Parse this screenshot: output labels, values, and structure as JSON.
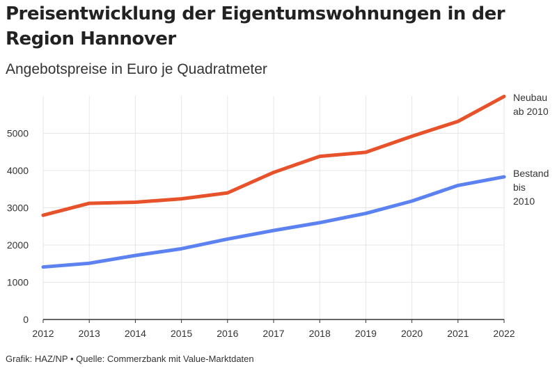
{
  "title": "Preisentwicklung der Eigentumswohnungen in der Region Hannover",
  "subtitle": "Angebotspreise in Euro je Quadratmeter",
  "footer": "Grafik: HAZ/NP • Quelle: Commerzbank mit Value-Marktdaten",
  "chart_data": {
    "type": "line",
    "title": "Preisentwicklung der Eigentumswohnungen in der Region Hannover",
    "subtitle": "Angebotspreise in Euro je Quadratmeter",
    "xlabel": "",
    "ylabel": "",
    "x": [
      2012,
      2013,
      2014,
      2015,
      2016,
      2017,
      2018,
      2019,
      2020,
      2021,
      2022
    ],
    "x_tick_labels": [
      "2012",
      "2013",
      "2014",
      "2015",
      "2016",
      "2017",
      "2018",
      "2019",
      "2020",
      "2021",
      "2022"
    ],
    "y_ticks": [
      0,
      1000,
      2000,
      3000,
      4000,
      5000
    ],
    "y_tick_labels": [
      "0",
      "1000",
      "2000",
      "3000",
      "4000",
      "5000"
    ],
    "ylim": [
      0,
      6000
    ],
    "grid": true,
    "legend": "direct labels at right end of lines",
    "series": [
      {
        "name": "Neubau ab 2010",
        "label_lines": [
          "Neubau",
          "ab 2010"
        ],
        "color": "#e8522a",
        "values": [
          2800,
          3120,
          3150,
          3240,
          3400,
          3950,
          4380,
          4490,
          4920,
          5320,
          5990
        ]
      },
      {
        "name": "Bestand bis 2010",
        "label_lines": [
          "Bestand",
          "bis",
          "2010"
        ],
        "color": "#5b82f0",
        "values": [
          1410,
          1510,
          1720,
          1900,
          2160,
          2390,
          2600,
          2850,
          3180,
          3600,
          3830
        ]
      }
    ]
  }
}
